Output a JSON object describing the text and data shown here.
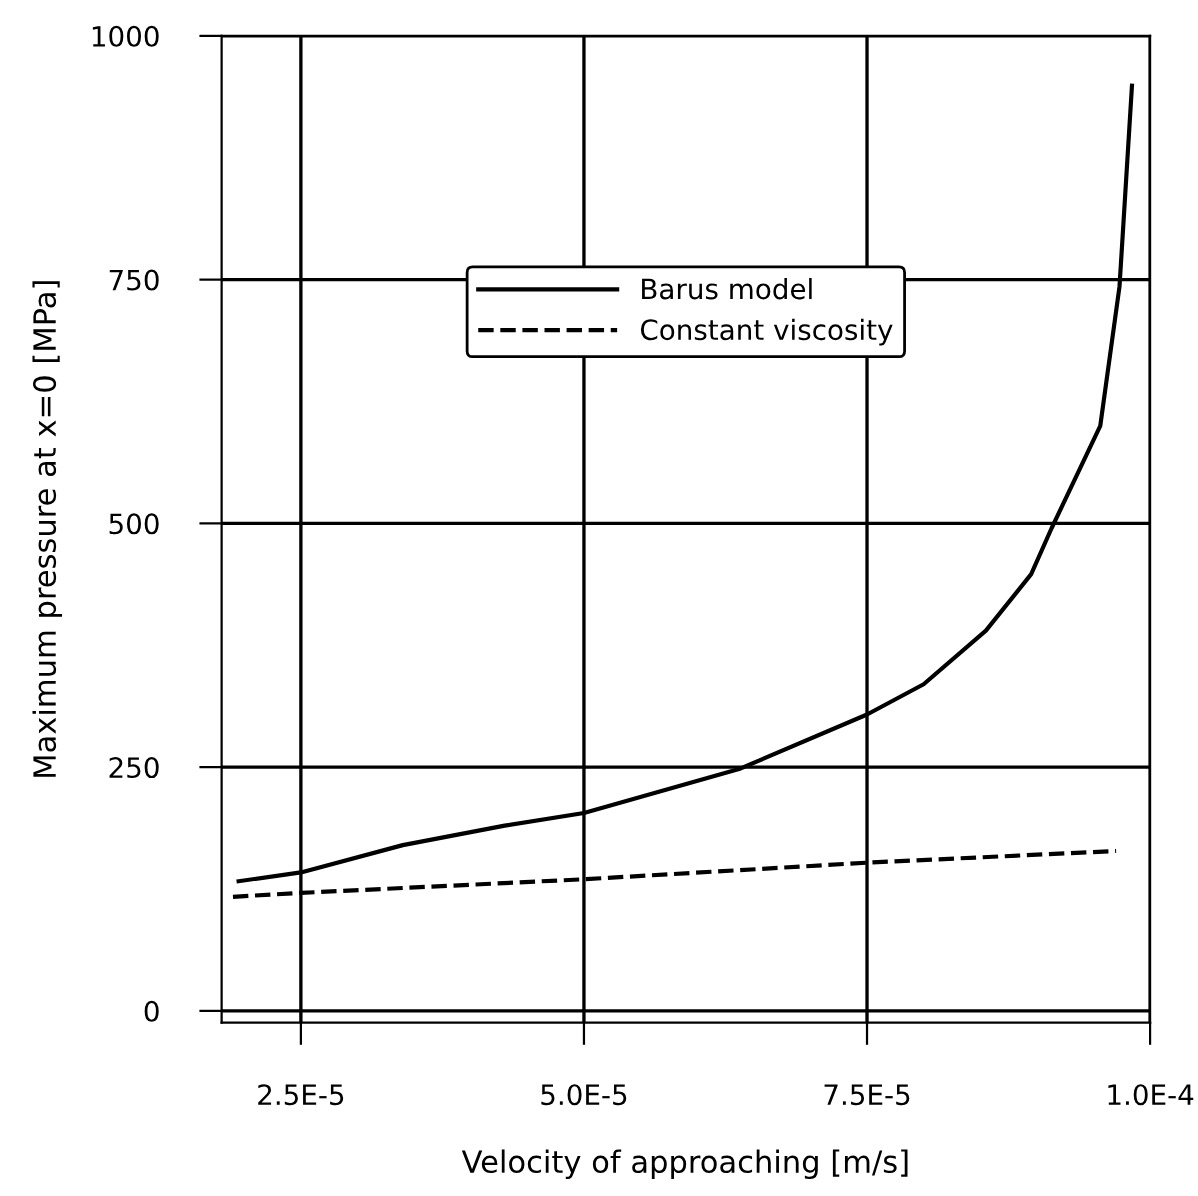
{
  "chart_data": {
    "type": "line",
    "xlabel": "Velocity of approaching [m/s]",
    "ylabel": "Maximum pressure at x=0 [MPa]",
    "xlim": [
      1.8e-05,
      0.0001
    ],
    "ylim": [
      -12,
      1000
    ],
    "xticks": [
      {
        "value": 2.5e-05,
        "label": "2.5E-5"
      },
      {
        "value": 5e-05,
        "label": "5.0E-5"
      },
      {
        "value": 7.5e-05,
        "label": "7.5E-5"
      },
      {
        "value": 0.0001,
        "label": "1.0E-4"
      }
    ],
    "yticks": [
      0,
      250,
      500,
      750,
      1000
    ],
    "grid": true,
    "legend": "top",
    "series": [
      {
        "name": "Barus model",
        "color": "#000000",
        "line_style": "solid",
        "x": [
          1.95e-05,
          2.5e-05,
          3.4e-05,
          4.3e-05,
          5e-05,
          6.37e-05,
          7.5e-05,
          8e-05,
          8.55e-05,
          8.95e-05,
          9.13e-05,
          9.56e-05,
          9.73e-05,
          9.84e-05
        ],
        "values": [
          133,
          142,
          170,
          190,
          203,
          248,
          304,
          335,
          390,
          448,
          495,
          600,
          743,
          949
        ]
      },
      {
        "name": "Constant viscosity",
        "color": "#000000",
        "line_style": "dashed",
        "x": [
          1.9e-05,
          2.5e-05,
          5e-05,
          7.5e-05,
          9.7e-05
        ],
        "values": [
          117,
          121,
          135,
          152,
          164
        ]
      }
    ]
  }
}
